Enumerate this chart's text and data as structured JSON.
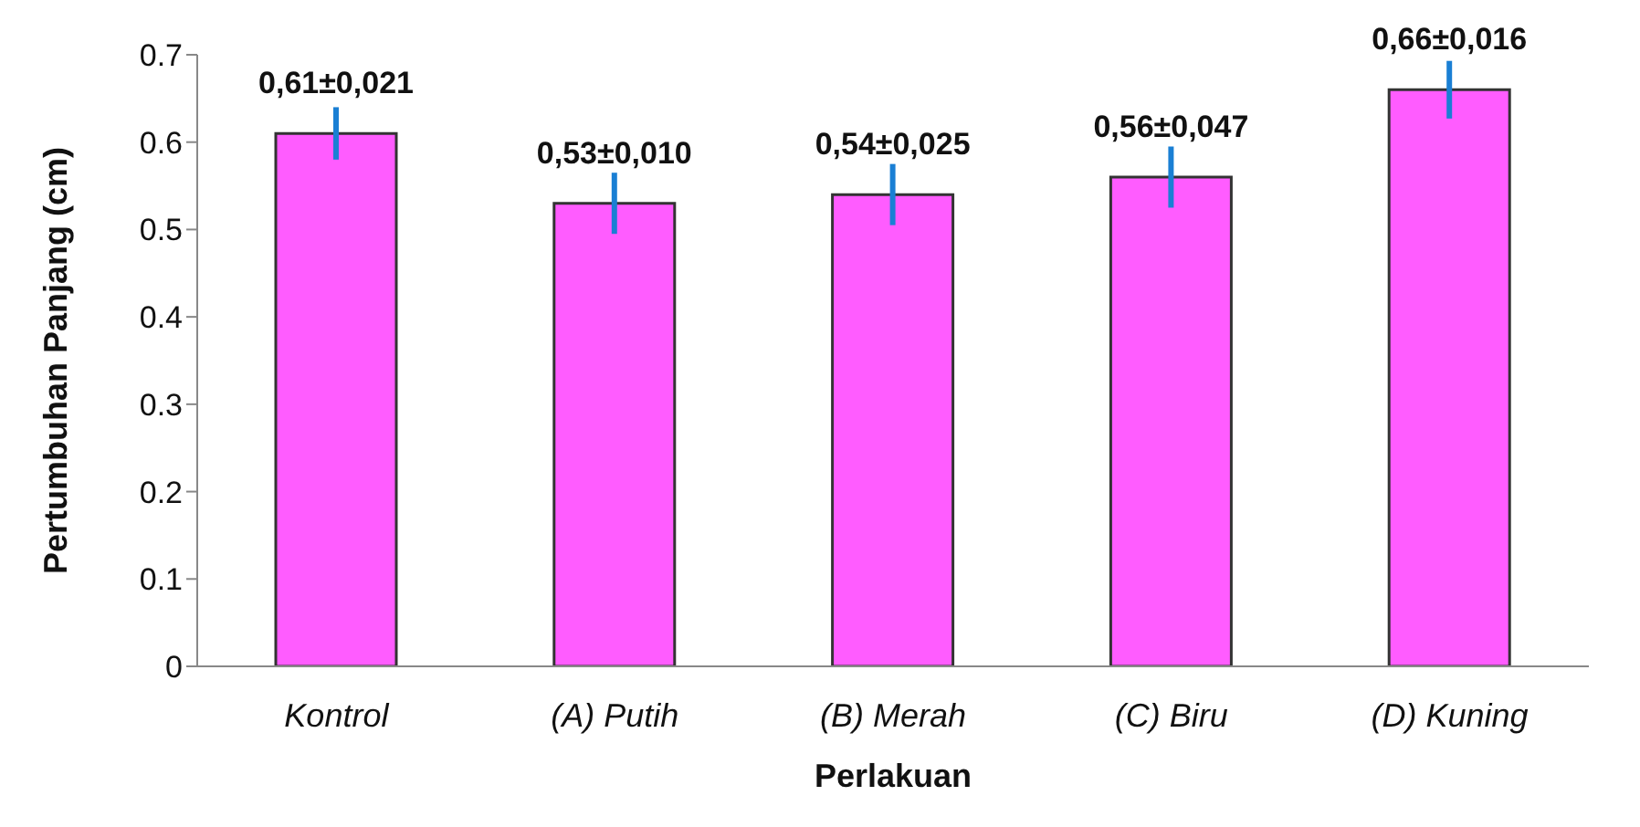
{
  "chart_data": {
    "type": "bar",
    "xlabel": "Perlakuan",
    "ylabel": "Pertumbuhan Panjang (cm)",
    "categories": [
      "Kontrol",
      "(A) Putih",
      "(B) Merah",
      "(C) Biru",
      "(D) Kuning"
    ],
    "values": [
      0.61,
      0.53,
      0.54,
      0.56,
      0.66
    ],
    "errors": [
      0.03,
      0.035,
      0.035,
      0.035,
      0.033
    ],
    "value_labels": [
      "0,61±0,021",
      "0,53±0,010",
      "0,54±0,025",
      "0,56±0,047",
      "0,66±0,016"
    ],
    "color": "#ff5cff",
    "ylim": [
      0,
      0.7
    ],
    "yticks": [
      0,
      0.1,
      0.2,
      0.3,
      0.4,
      0.5,
      0.6,
      0.7
    ],
    "grid": false,
    "legend": false
  }
}
